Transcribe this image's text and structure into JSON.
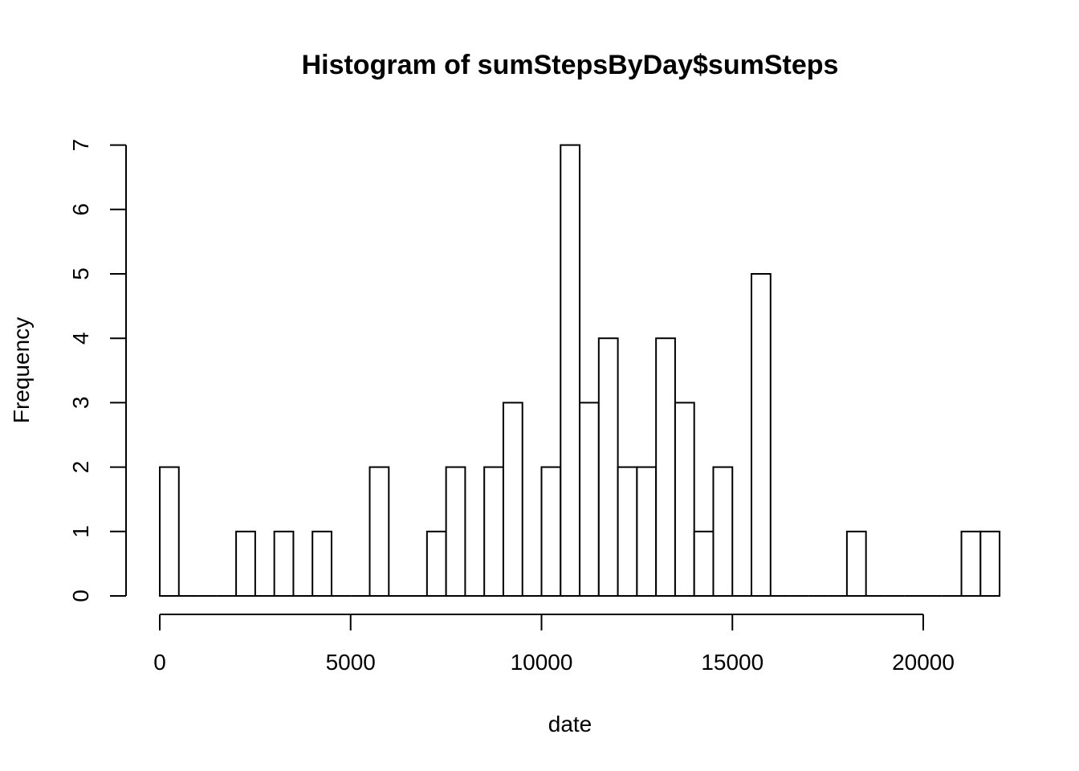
{
  "chart_data": {
    "type": "bar",
    "title": "Histogram of sumStepsByDay$sumSteps",
    "xlabel": "date",
    "ylabel": "Frequency",
    "bin_width": 500,
    "x_start": 0,
    "values": [
      2,
      0,
      0,
      0,
      1,
      0,
      1,
      0,
      1,
      0,
      0,
      2,
      0,
      0,
      1,
      2,
      0,
      2,
      3,
      0,
      2,
      7,
      3,
      4,
      2,
      2,
      4,
      3,
      1,
      2,
      0,
      5,
      0,
      0,
      0,
      0,
      1,
      0,
      0,
      0,
      0,
      0,
      1,
      1
    ],
    "xlim": [
      0,
      20000
    ],
    "ylim": [
      0,
      7
    ],
    "x_ticks": [
      "0",
      "5000",
      "10000",
      "15000",
      "20000"
    ],
    "y_ticks": [
      "0",
      "1",
      "2",
      "3",
      "4",
      "5",
      "6",
      "7"
    ],
    "bar_fill": "#ffffff",
    "bar_stroke": "#000000",
    "grid": false,
    "legend": "none"
  }
}
